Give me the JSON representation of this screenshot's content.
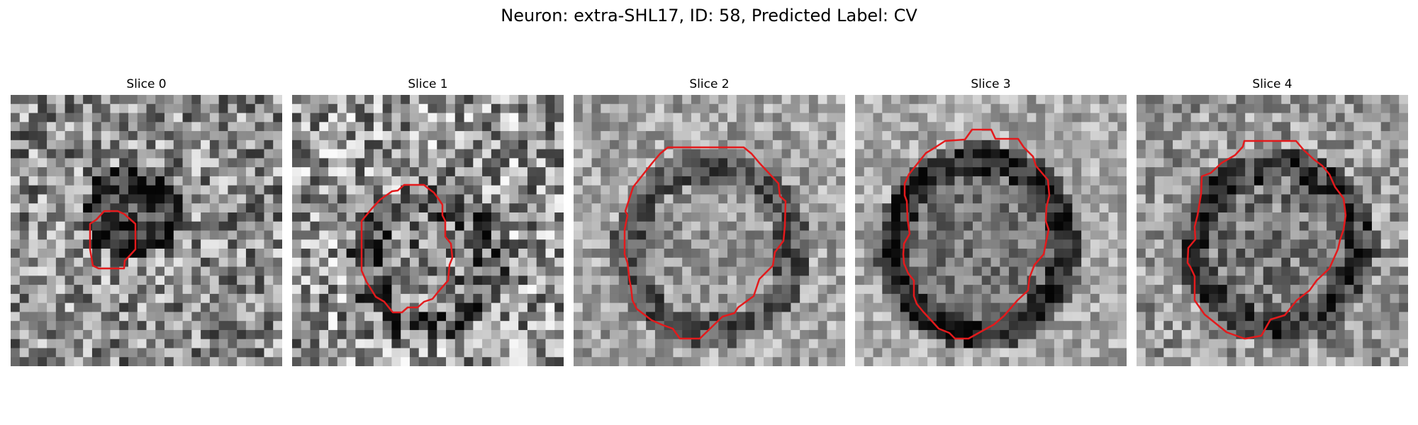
{
  "figure": {
    "title": "Neuron: extra-SHL17, ID: 58, Predicted Label: CV",
    "contour_color": "#e31a1c",
    "colormap": "gray",
    "panels": [
      {
        "title": "Slice 0"
      },
      {
        "title": "Slice 1"
      },
      {
        "title": "Slice 2"
      },
      {
        "title": "Slice 3"
      },
      {
        "title": "Slice 4"
      }
    ]
  }
}
